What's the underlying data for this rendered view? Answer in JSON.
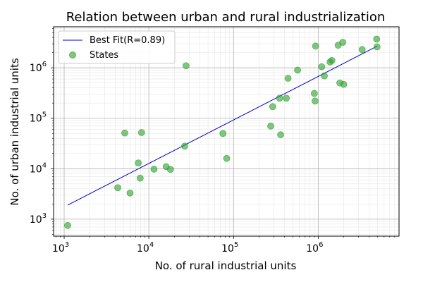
{
  "chart_data": {
    "type": "scatter",
    "title": "Relation between urban and rural industrialization",
    "xlabel": "No. of rural industrial units",
    "ylabel": "No. of urban industrial units",
    "xscale": "log",
    "yscale": "log",
    "xlim": [
      750,
      9000000
    ],
    "ylim": [
      460,
      6500000
    ],
    "grid": true,
    "legend_position": "top-left",
    "x_ticks": [
      {
        "value": 1000,
        "base": "10",
        "exp": "3"
      },
      {
        "value": 10000,
        "base": "10",
        "exp": "4"
      },
      {
        "value": 100000,
        "base": "10",
        "exp": "5"
      },
      {
        "value": 1000000,
        "base": "10",
        "exp": "6"
      }
    ],
    "y_ticks": [
      {
        "value": 1000,
        "base": "10",
        "exp": "3"
      },
      {
        "value": 10000,
        "base": "10",
        "exp": "4"
      },
      {
        "value": 100000,
        "base": "10",
        "exp": "5"
      },
      {
        "value": 1000000,
        "base": "10",
        "exp": "6"
      }
    ],
    "fit_line": {
      "name": "Best Fit(R=0.89)",
      "color": "#0000cc",
      "x": [
        1100,
        5000000
      ],
      "y": [
        1900,
        2700000
      ]
    },
    "series": [
      {
        "name": "States",
        "color": "#2ca02c",
        "points": [
          {
            "x": 1100,
            "y": 750
          },
          {
            "x": 4300,
            "y": 4200
          },
          {
            "x": 5200,
            "y": 51000
          },
          {
            "x": 6000,
            "y": 3300
          },
          {
            "x": 7500,
            "y": 13000
          },
          {
            "x": 7900,
            "y": 6500
          },
          {
            "x": 8200,
            "y": 52000
          },
          {
            "x": 11500,
            "y": 9800
          },
          {
            "x": 16000,
            "y": 11000
          },
          {
            "x": 18000,
            "y": 9700
          },
          {
            "x": 26500,
            "y": 28000
          },
          {
            "x": 27500,
            "y": 1100000
          },
          {
            "x": 75000,
            "y": 50000
          },
          {
            "x": 83000,
            "y": 16000
          },
          {
            "x": 275000,
            "y": 70000
          },
          {
            "x": 290000,
            "y": 170000
          },
          {
            "x": 350000,
            "y": 250000
          },
          {
            "x": 360000,
            "y": 47000
          },
          {
            "x": 420000,
            "y": 250000
          },
          {
            "x": 440000,
            "y": 620000
          },
          {
            "x": 570000,
            "y": 900000
          },
          {
            "x": 900000,
            "y": 310000
          },
          {
            "x": 920000,
            "y": 220000
          },
          {
            "x": 930000,
            "y": 2700000
          },
          {
            "x": 1100000,
            "y": 1050000
          },
          {
            "x": 1180000,
            "y": 690000
          },
          {
            "x": 1380000,
            "y": 1300000
          },
          {
            "x": 1450000,
            "y": 1400000
          },
          {
            "x": 1720000,
            "y": 2800000
          },
          {
            "x": 1800000,
            "y": 500000
          },
          {
            "x": 1950000,
            "y": 3200000
          },
          {
            "x": 2000000,
            "y": 470000
          },
          {
            "x": 3300000,
            "y": 2300000
          },
          {
            "x": 4900000,
            "y": 3700000
          },
          {
            "x": 4950000,
            "y": 2600000
          }
        ]
      }
    ]
  }
}
